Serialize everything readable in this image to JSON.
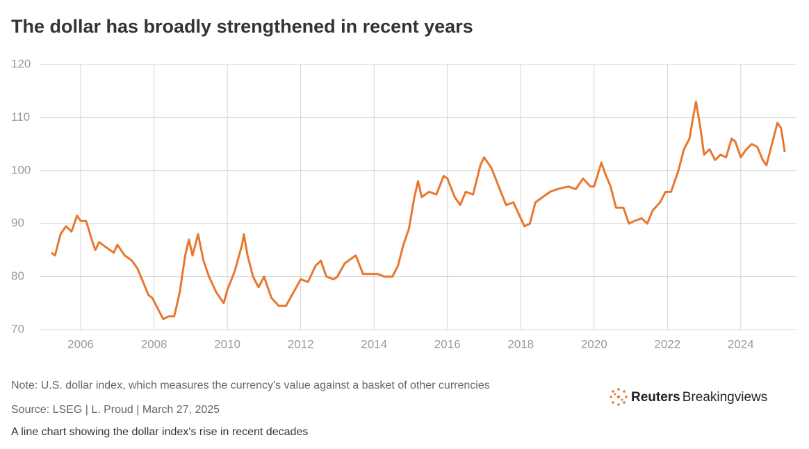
{
  "chart_data": {
    "type": "line",
    "title": "The dollar has broadly strengthened in recent years",
    "note": "Note: U.S. dollar index, which measures the currency's value against a basket of other currencies",
    "source": "Source: LSEG | L. Proud | March 27, 2025",
    "caption": "A line chart showing the dollar index's rise in recent decades",
    "logo": [
      "Reuters",
      "Breakingviews"
    ],
    "xlim": [
      2004.88,
      2025.52
    ],
    "xticks": [
      2006,
      2008,
      2010,
      2012,
      2014,
      2016,
      2018,
      2020,
      2022,
      2024
    ],
    "ylim": [
      70,
      120
    ],
    "yticks": [
      70,
      80,
      90,
      100,
      110,
      120
    ],
    "grid": true,
    "x": [
      2005.2,
      2005.3,
      2005.45,
      2005.6,
      2005.75,
      2005.9,
      2006.0,
      2006.15,
      2006.3,
      2006.4,
      2006.5,
      2006.7,
      2006.9,
      2007.0,
      2007.2,
      2007.4,
      2007.55,
      2007.7,
      2007.85,
      2007.95,
      2008.1,
      2008.25,
      2008.4,
      2008.55,
      2008.7,
      2008.85,
      2008.95,
      2009.05,
      2009.2,
      2009.35,
      2009.5,
      2009.7,
      2009.9,
      2010.0,
      2010.2,
      2010.4,
      2010.45,
      2010.55,
      2010.7,
      2010.85,
      2011.0,
      2011.2,
      2011.4,
      2011.6,
      2011.8,
      2012.0,
      2012.2,
      2012.4,
      2012.55,
      2012.7,
      2012.9,
      2013.0,
      2013.2,
      2013.4,
      2013.5,
      2013.7,
      2013.9,
      2014.1,
      2014.3,
      2014.5,
      2014.65,
      2014.8,
      2014.95,
      2015.1,
      2015.2,
      2015.3,
      2015.5,
      2015.7,
      2015.9,
      2016.0,
      2016.2,
      2016.35,
      2016.5,
      2016.7,
      2016.9,
      2017.0,
      2017.2,
      2017.4,
      2017.6,
      2017.8,
      2018.0,
      2018.1,
      2018.25,
      2018.4,
      2018.6,
      2018.8,
      2019.0,
      2019.3,
      2019.5,
      2019.7,
      2019.9,
      2020.0,
      2020.2,
      2020.3,
      2020.45,
      2020.6,
      2020.8,
      2020.95,
      2021.1,
      2021.3,
      2021.45,
      2021.6,
      2021.8,
      2021.95,
      2022.1,
      2022.3,
      2022.45,
      2022.6,
      2022.7,
      2022.78,
      2022.9,
      2023.0,
      2023.15,
      2023.3,
      2023.45,
      2023.6,
      2023.75,
      2023.85,
      2024.0,
      2024.15,
      2024.3,
      2024.45,
      2024.6,
      2024.7,
      2024.85,
      2025.0,
      2025.1,
      2025.2
    ],
    "series": [
      {
        "color": "#e8772e",
        "values": [
          84.5,
          84,
          88,
          89.5,
          88.5,
          91.5,
          90.5,
          90.5,
          87,
          85,
          86.5,
          85.5,
          84.5,
          86,
          84,
          83,
          81.5,
          79,
          76.5,
          76,
          74,
          72,
          72.5,
          72.5,
          77,
          84,
          87,
          84,
          88,
          83,
          80,
          77,
          75,
          77.5,
          81,
          86,
          88,
          84,
          80,
          78,
          80,
          76,
          74.5,
          74.5,
          77,
          79.5,
          79,
          82,
          83,
          80,
          79.5,
          80,
          82.5,
          83.5,
          84,
          80.5,
          80.5,
          80.5,
          80,
          80,
          82,
          86,
          89,
          95,
          98,
          95,
          96,
          95.5,
          99,
          98.5,
          95,
          93.5,
          96,
          95.5,
          101,
          102.5,
          100.5,
          97,
          93.5,
          94,
          91,
          89.5,
          90,
          94,
          95,
          96,
          96.5,
          97,
          96.5,
          98.5,
          97,
          97,
          101.5,
          99.5,
          97,
          93,
          93,
          90,
          90.5,
          91,
          90,
          92.5,
          94,
          96,
          96,
          100,
          104,
          106,
          110,
          113,
          108,
          103,
          104,
          102,
          103,
          102.5,
          106,
          105.5,
          102.5,
          104,
          105,
          104.5,
          102,
          101,
          105,
          109,
          108,
          103.5
        ]
      }
    ]
  }
}
